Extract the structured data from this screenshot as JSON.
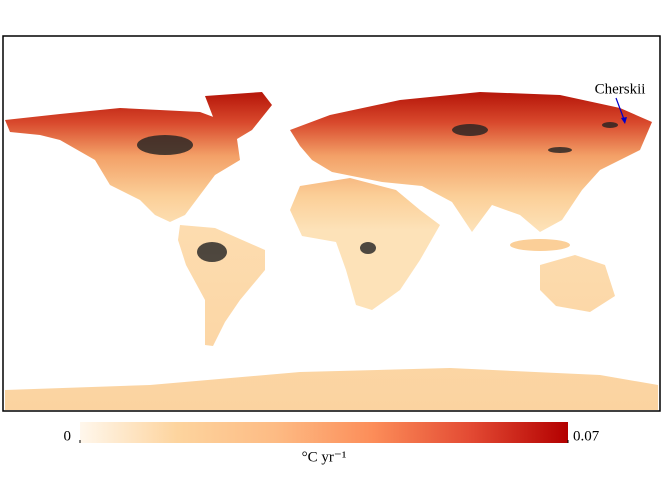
{
  "map": {
    "annotation": "Cherskii",
    "colorbar": {
      "lim": [
        0,
        0.07
      ],
      "ticks": [
        0,
        0.07
      ],
      "label": "°C yr⁻¹",
      "colors": [
        "#fff7ec",
        "#fdd49e",
        "#fdbb84",
        "#fc8d59",
        "#e34a33",
        "#b30000"
      ]
    }
  }
}
